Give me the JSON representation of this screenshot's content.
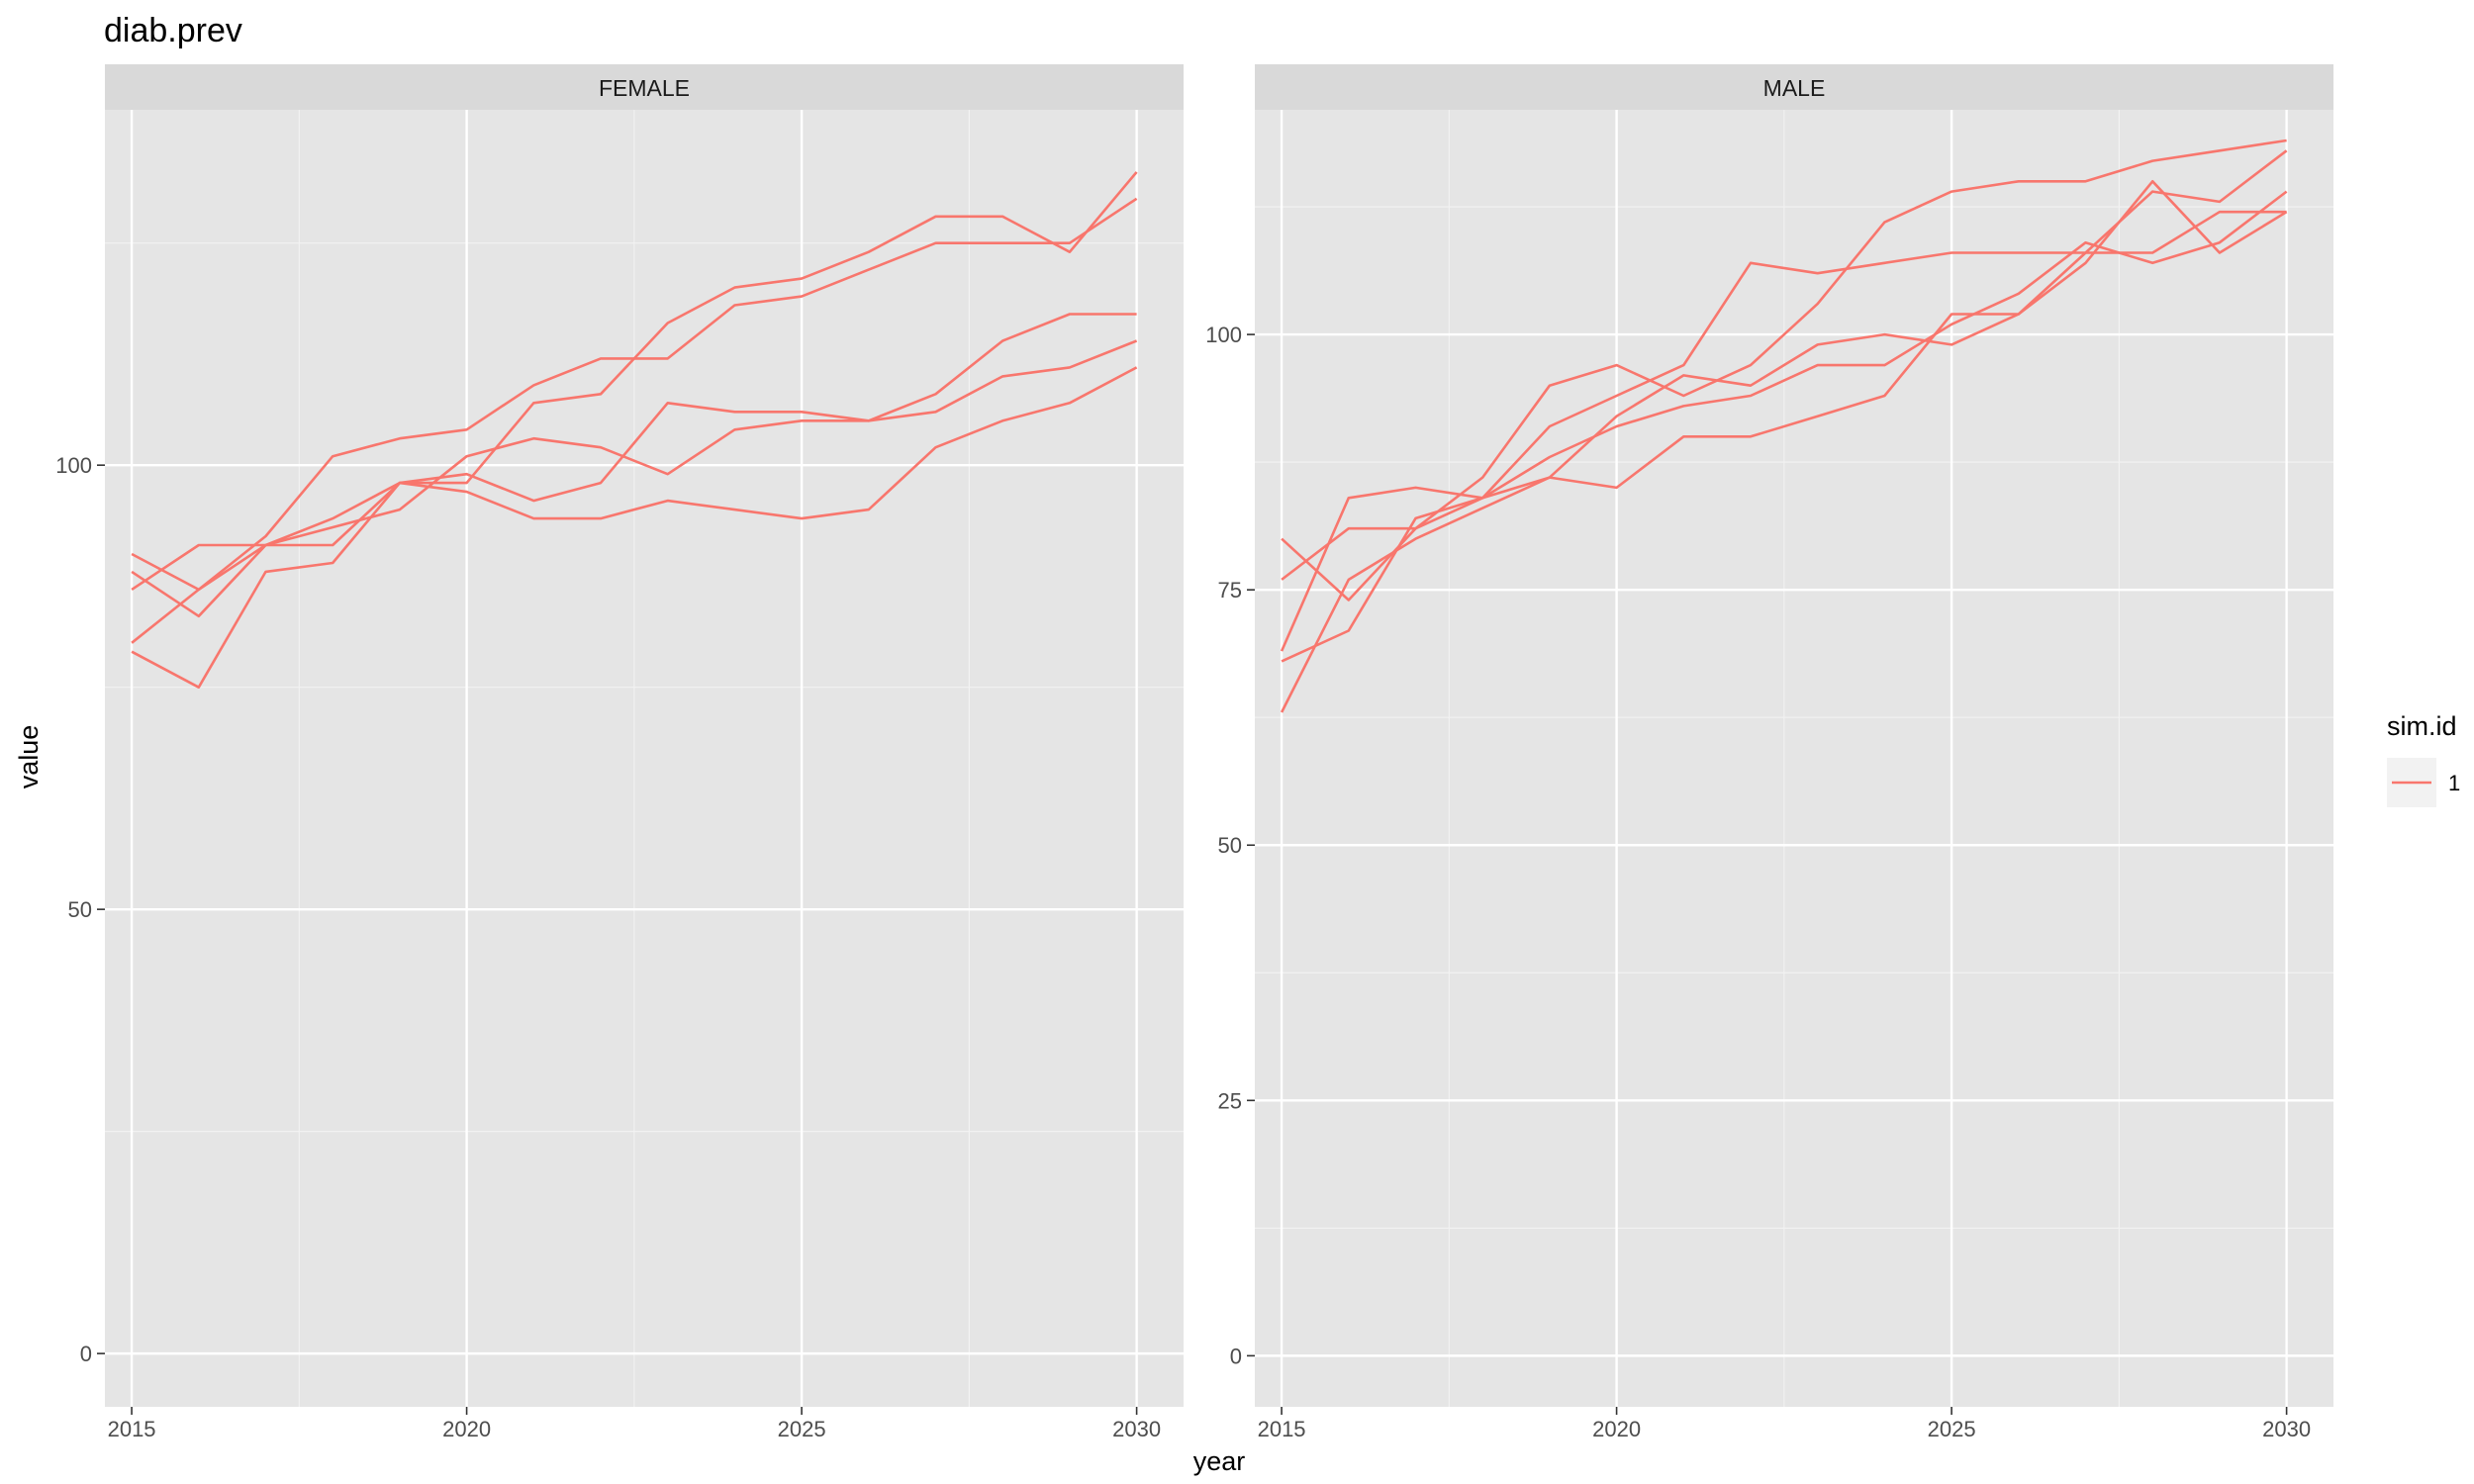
{
  "chart_data": {
    "type": "line",
    "title": "diab.prev",
    "xlabel": "year",
    "ylabel": "value",
    "legend": {
      "title": "sim.id",
      "entries": [
        "1"
      ],
      "position": "right",
      "color": "#F8766D"
    },
    "line_color": "#F8766D",
    "panel_background": "#E5E5E5",
    "strip_background": "#D9D9D9",
    "grid": true,
    "panels": [
      {
        "label": "FEMALE",
        "xlim": [
          2014.6,
          2030.7
        ],
        "ylim": [
          -6,
          140
        ],
        "x_ticks": [
          2015,
          2020,
          2025,
          2030
        ],
        "y_ticks": [
          0,
          50,
          100
        ],
        "x": [
          2015,
          2016,
          2017,
          2018,
          2019,
          2020,
          2021,
          2022,
          2023,
          2024,
          2025,
          2026,
          2027,
          2028,
          2029,
          2030
        ],
        "series": [
          {
            "values": [
              90,
              86,
              92,
              101,
              103,
              104,
              109,
              112,
              112,
              118,
              119,
              122,
              125,
              125,
              125,
              130
            ]
          },
          {
            "values": [
              86,
              91,
              91,
              91,
              98,
              98,
              107,
              108,
              116,
              120,
              121,
              124,
              128,
              128,
              124,
              133
            ]
          },
          {
            "values": [
              88,
              83,
              91,
              94,
              98,
              99,
              96,
              98,
              107,
              106,
              106,
              105,
              106,
              110,
              111,
              114
            ]
          },
          {
            "values": [
              80,
              86,
              91,
              93,
              95,
              101,
              103,
              102,
              99,
              104,
              105,
              105,
              108,
              114,
              117,
              117
            ]
          },
          {
            "values": [
              79,
              75,
              88,
              89,
              98,
              97,
              94,
              94,
              96,
              95,
              94,
              95,
              102,
              105,
              107,
              111
            ]
          }
        ]
      },
      {
        "label": "MALE",
        "xlim": [
          2014.6,
          2030.7
        ],
        "ylim": [
          -5,
          122
        ],
        "x_ticks": [
          2015,
          2020,
          2025,
          2030
        ],
        "y_ticks": [
          0,
          25,
          50,
          75,
          100
        ],
        "x": [
          2015,
          2016,
          2017,
          2018,
          2019,
          2020,
          2021,
          2022,
          2023,
          2024,
          2025,
          2026,
          2027,
          2028,
          2029,
          2030
        ],
        "series": [
          {
            "values": [
              80,
              74,
              81,
              86,
              95,
              97,
              94,
              97,
              103,
              111,
              114,
              115,
              115,
              117,
              118,
              119
            ]
          },
          {
            "values": [
              76,
              81,
              81,
              84,
              86,
              85,
              90,
              90,
              92,
              94,
              102,
              102,
              107,
              115,
              108,
              112
            ]
          },
          {
            "values": [
              69,
              84,
              85,
              84,
              91,
              94,
              97,
              107,
              106,
              107,
              108,
              108,
              108,
              108,
              112,
              112
            ]
          },
          {
            "values": [
              68,
              71,
              82,
              84,
              88,
              91,
              93,
              94,
              97,
              97,
              101,
              104,
              109,
              107,
              109,
              114
            ]
          },
          {
            "values": [
              63,
              76,
              80,
              83,
              86,
              92,
              96,
              95,
              99,
              100,
              99,
              102,
              108,
              114,
              113,
              118
            ]
          }
        ]
      }
    ]
  }
}
